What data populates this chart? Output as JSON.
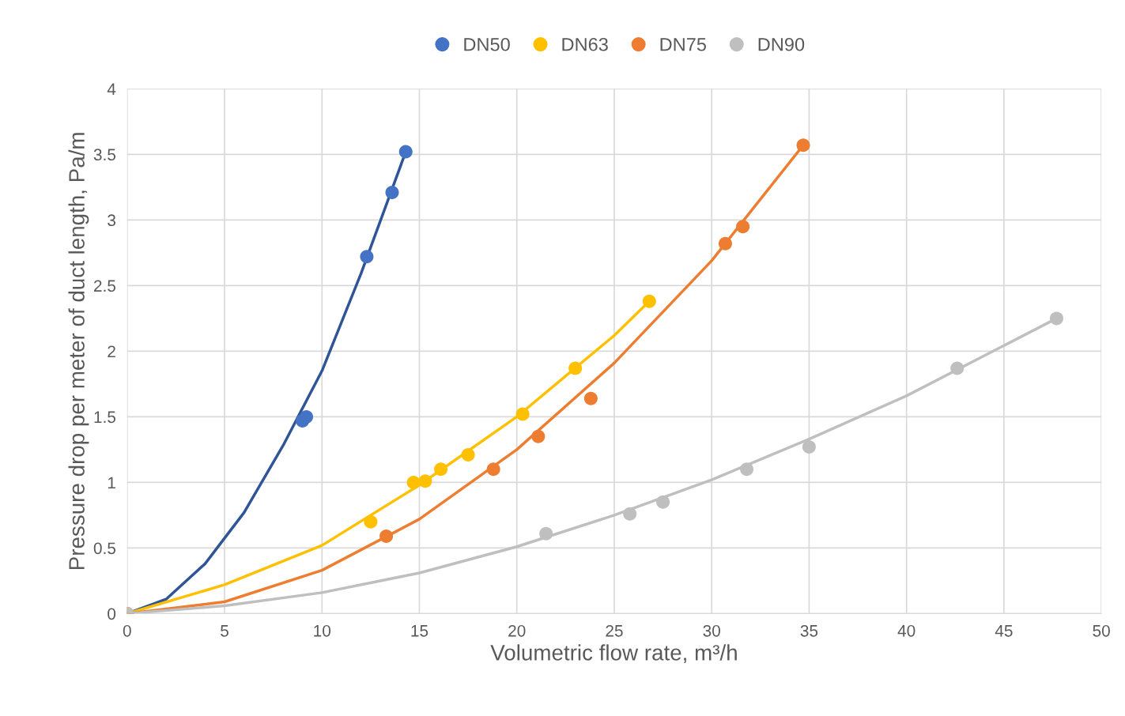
{
  "chart_data": {
    "type": "scatter",
    "xlabel": "Volumetric flow rate, m³/h",
    "ylabel": "Pressure drop per meter of duct length, Pa/m",
    "xlim": [
      0,
      50
    ],
    "xticks": [
      0,
      5,
      10,
      15,
      20,
      25,
      30,
      35,
      40,
      45,
      50
    ],
    "ylim": [
      0,
      4
    ],
    "yticks": [
      0,
      0.5,
      1,
      1.5,
      2,
      2.5,
      3,
      3.5,
      4
    ],
    "grid": true,
    "legend": "top",
    "series": [
      {
        "type": "line",
        "color": "#2f5597",
        "x": [
          0,
          2,
          4,
          6,
          8,
          10,
          12,
          14.3
        ],
        "values": [
          0,
          0.11,
          0.38,
          0.77,
          1.28,
          1.85,
          2.59,
          3.52
        ]
      },
      {
        "type": "line",
        "color": "#ffc000",
        "x": [
          0,
          5,
          10,
          15,
          20,
          25,
          26.8
        ],
        "values": [
          0,
          0.22,
          0.52,
          0.98,
          1.5,
          2.12,
          2.38
        ]
      },
      {
        "type": "line",
        "color": "#ed7d31",
        "x": [
          0,
          5,
          10,
          15,
          20,
          25,
          30,
          34.7
        ],
        "values": [
          0,
          0.09,
          0.33,
          0.72,
          1.25,
          1.91,
          2.69,
          3.57
        ]
      },
      {
        "type": "line",
        "color": "#bfbfbf",
        "x": [
          0,
          5,
          10,
          15,
          20,
          25,
          30,
          35,
          40,
          47.7
        ],
        "values": [
          0,
          0.06,
          0.16,
          0.31,
          0.51,
          0.75,
          1.02,
          1.33,
          1.66,
          2.25
        ]
      },
      {
        "name": "DN50",
        "marker": "circle",
        "color": "#4472c4",
        "x": [
          0,
          9.0,
          9.2,
          12.3,
          13.6,
          14.3
        ],
        "values": [
          0,
          1.47,
          1.5,
          2.72,
          3.21,
          3.52
        ]
      },
      {
        "name": "DN63",
        "marker": "circle",
        "color": "#ffc000",
        "x": [
          0,
          12.5,
          14.7,
          15.3,
          16.1,
          17.5,
          20.3,
          23.0,
          26.8
        ],
        "values": [
          0,
          0.7,
          1.0,
          1.01,
          1.1,
          1.21,
          1.52,
          1.87,
          2.38
        ]
      },
      {
        "name": "DN75",
        "marker": "circle",
        "color": "#ed7d31",
        "x": [
          0,
          13.3,
          18.8,
          21.1,
          23.8,
          30.7,
          31.6,
          34.7
        ],
        "values": [
          0,
          0.59,
          1.1,
          1.35,
          1.64,
          2.82,
          2.95,
          3.57
        ]
      },
      {
        "name": "DN90",
        "marker": "circle",
        "color": "#bfbfbf",
        "x": [
          0,
          21.5,
          25.8,
          27.5,
          31.8,
          35.0,
          42.6,
          47.7
        ],
        "values": [
          0,
          0.61,
          0.76,
          0.85,
          1.1,
          1.27,
          1.87,
          2.25
        ]
      }
    ]
  }
}
